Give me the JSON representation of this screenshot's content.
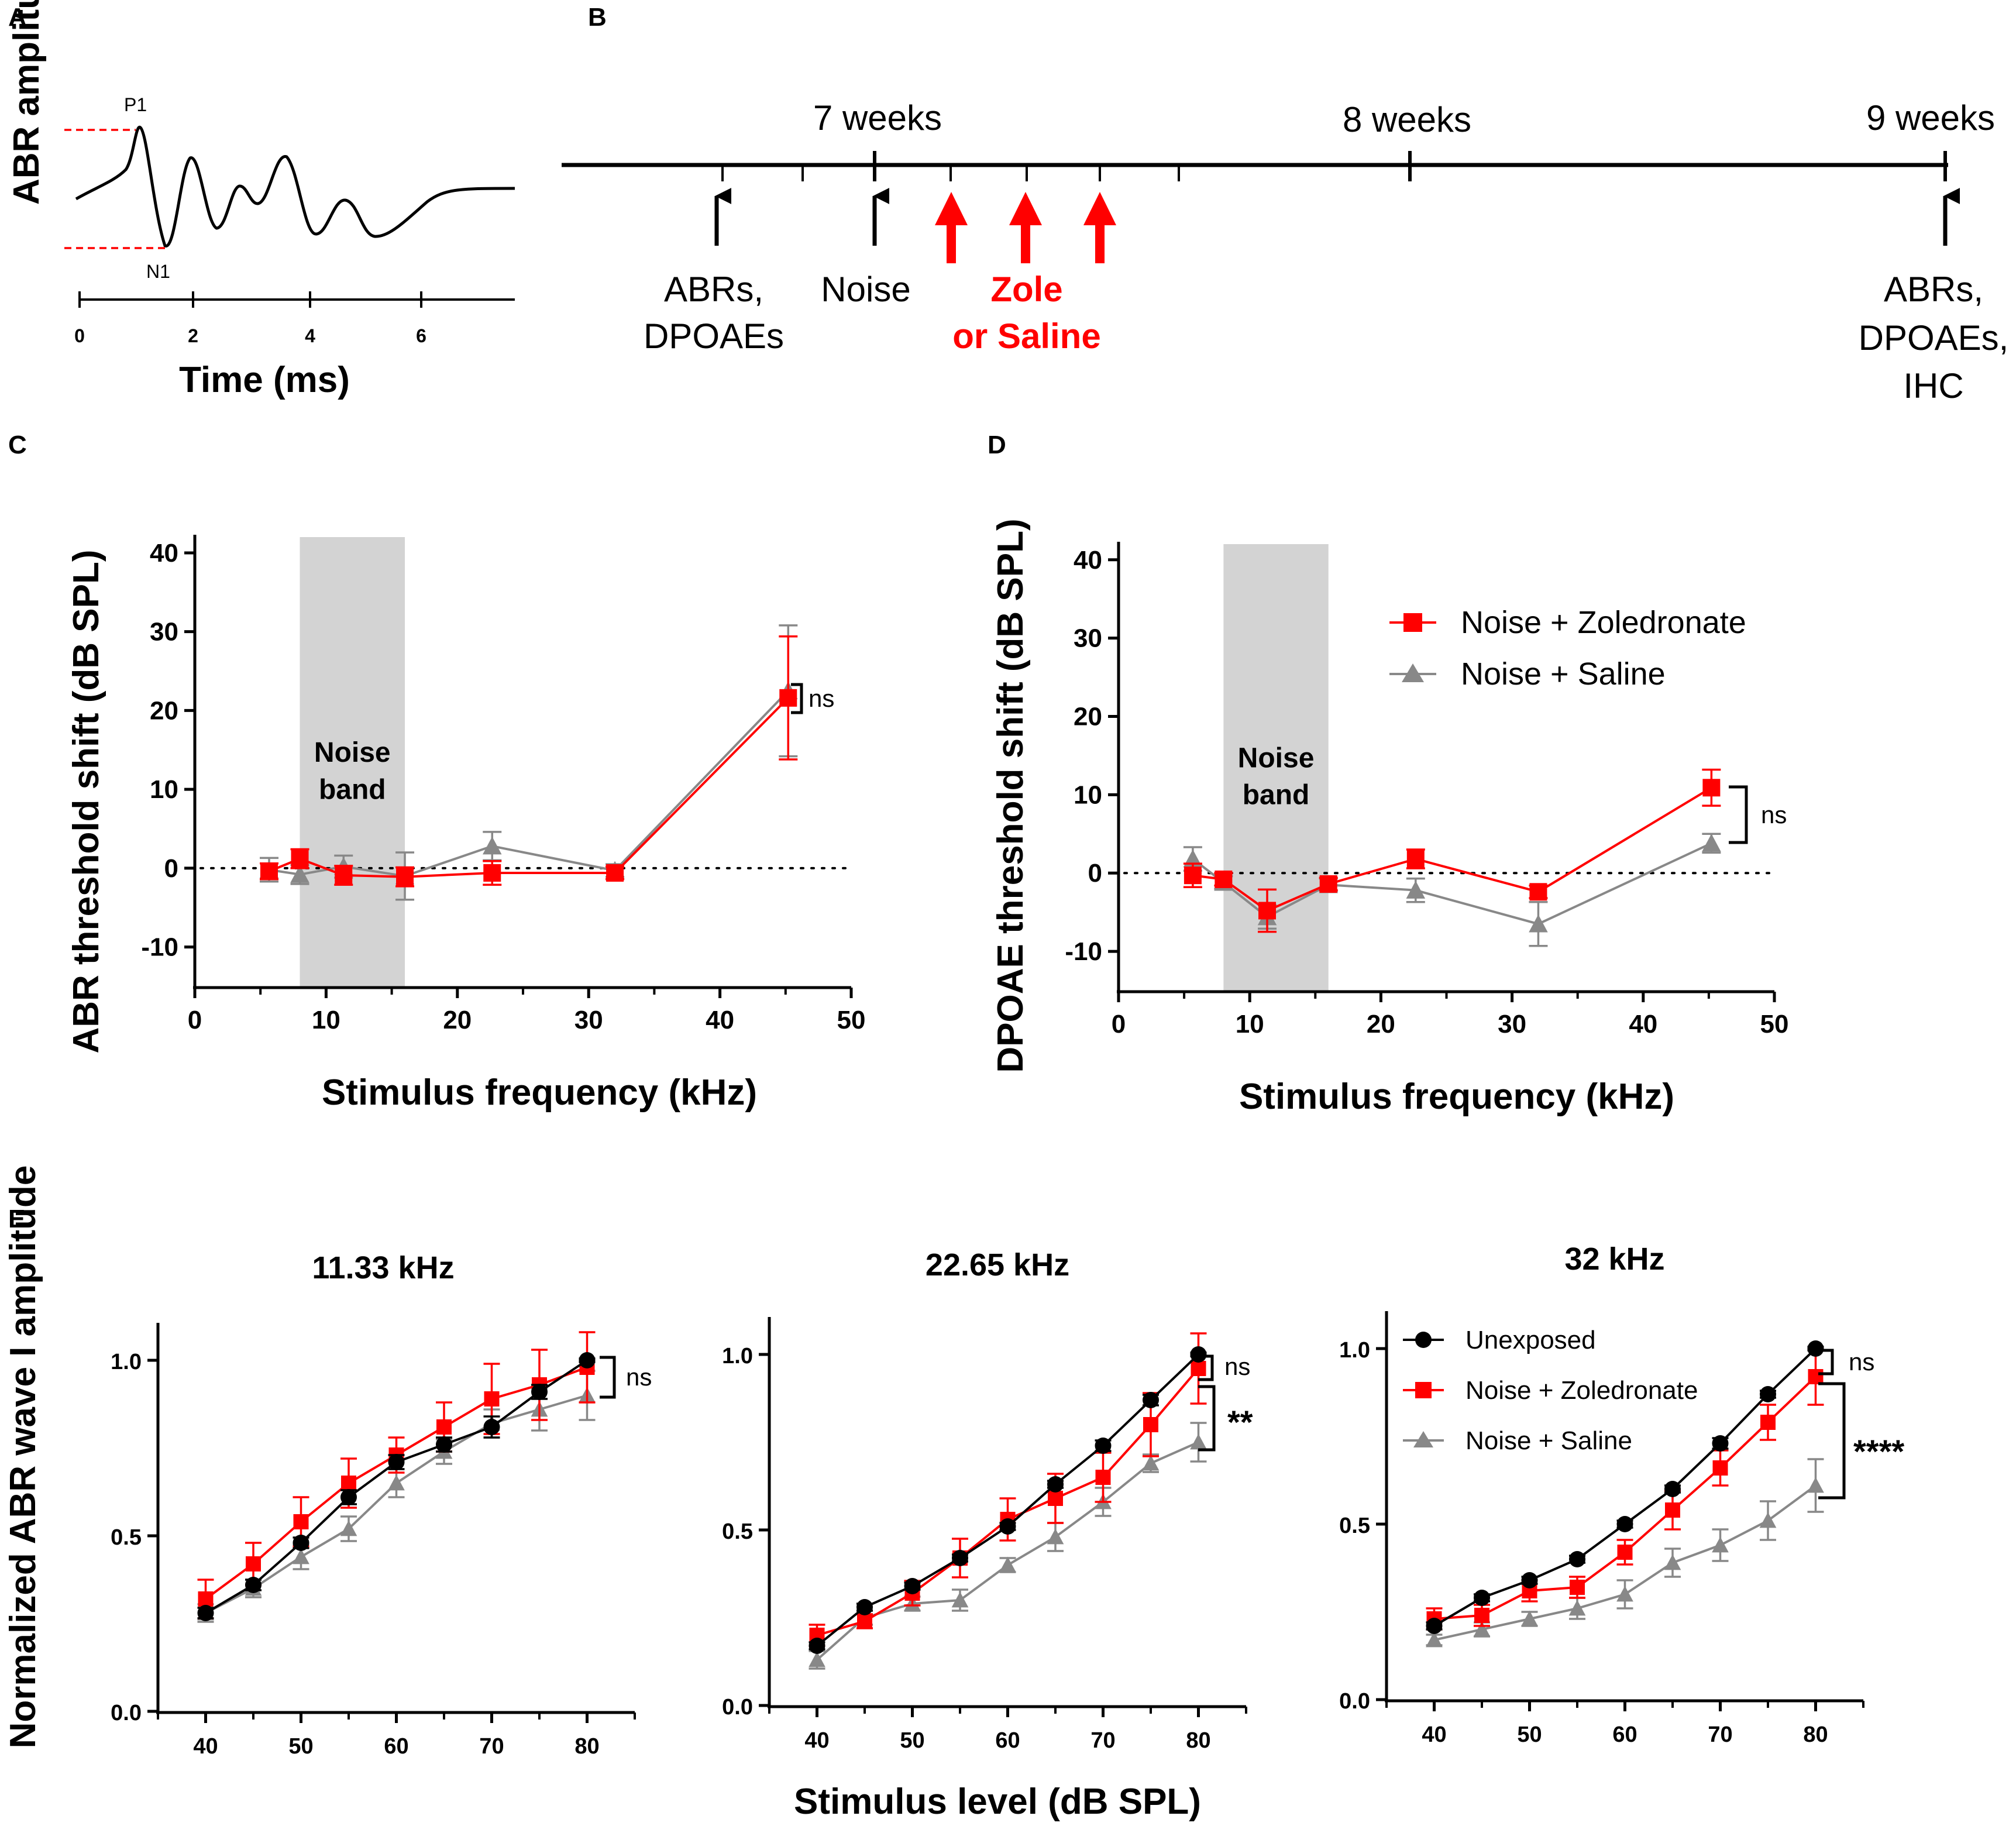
{
  "colors": {
    "zoledronate": "#ff0000",
    "saline": "#888888",
    "unexposed": "#000000",
    "noise_band": "#d3d3d3",
    "guide": "#ff0000"
  },
  "panel_labels": {
    "a": "A",
    "b": "B",
    "c": "C",
    "d": "D",
    "e": "E"
  },
  "panel_a": {
    "ylabel": "ABR amplitude",
    "xlabel": "Time (ms)",
    "ticks": [
      "0",
      "2",
      "4",
      "6"
    ],
    "peak_p1": "P1",
    "peak_n1": "N1"
  },
  "panel_b": {
    "timepoints": [
      "7 weeks",
      "8 weeks",
      "9 weeks"
    ],
    "events": {
      "baseline_line1": "ABRs,",
      "baseline_line2": "DPOAEs",
      "noise": "Noise",
      "treatment_line1": "Zole",
      "treatment_line2": "or Saline",
      "final_line1": "ABRs,",
      "final_line2": "DPOAEs,",
      "final_line3": "IHC"
    }
  },
  "legend_cd": {
    "zoledronate": "Noise + Zoledronate",
    "saline": "Noise + Saline"
  },
  "legend_e": {
    "unexposed": "Unexposed",
    "zoledronate": "Noise + Zoledronate",
    "saline": "Noise + Saline"
  },
  "chart_data": [
    {
      "id": "C",
      "type": "line",
      "ylabel": "ABR threshold shift (dB SPL)",
      "xlabel": "Stimulus frequency (kHz)",
      "xlim": [
        0,
        50
      ],
      "ylim": [
        -15,
        42
      ],
      "xticks": [
        0,
        10,
        20,
        30,
        40,
        50
      ],
      "yticks": [
        -10,
        0,
        10,
        20,
        30,
        40
      ],
      "noise_band": {
        "x": [
          8,
          16
        ],
        "label_line1": "Noise",
        "label_line2": "band"
      },
      "reference_line_y": 0,
      "annotations": [
        "ns"
      ],
      "series": [
        {
          "name": "Noise + Saline",
          "x": [
            5.66,
            8,
            11.33,
            16,
            22.65,
            32,
            45.2
          ],
          "y": [
            -0.2,
            -0.8,
            0.2,
            -1,
            2.8,
            -0.3,
            22.5
          ],
          "err": [
            1.5,
            1.2,
            1.4,
            3,
            1.8,
            0.8,
            8.3
          ]
        },
        {
          "name": "Noise + Zoledronate",
          "x": [
            5.66,
            8,
            11.33,
            16,
            22.65,
            32,
            45.2
          ],
          "y": [
            -0.4,
            1.2,
            -0.9,
            -1.1,
            -0.6,
            -0.6,
            21.6
          ],
          "err": [
            1,
            1.2,
            1.2,
            1.2,
            1.5,
            0.8,
            7.8
          ]
        }
      ]
    },
    {
      "id": "D",
      "type": "line",
      "ylabel": "DPOAE threshold shift (dB SPL)",
      "xlabel": "Stimulus frequency (kHz)",
      "xlim": [
        0,
        50
      ],
      "ylim": [
        -15,
        42
      ],
      "xticks": [
        0,
        10,
        20,
        30,
        40,
        50
      ],
      "yticks": [
        -10,
        0,
        10,
        20,
        30,
        40
      ],
      "noise_band": {
        "x": [
          8,
          16
        ],
        "label_line1": "Noise",
        "label_line2": "band"
      },
      "reference_line_y": 0,
      "annotations": [
        "ns"
      ],
      "series": [
        {
          "name": "Noise + Saline",
          "x": [
            5.66,
            8,
            11.33,
            16,
            22.65,
            32,
            45.2
          ],
          "y": [
            1.8,
            -1.2,
            -5.6,
            -1.5,
            -2.2,
            -6.5,
            3.8
          ],
          "err": [
            1.5,
            0.8,
            1.5,
            0.8,
            1.5,
            2.8,
            1.2
          ]
        },
        {
          "name": "Noise + Zoledronate",
          "x": [
            5.66,
            8,
            11.33,
            16,
            22.65,
            32,
            45.2
          ],
          "y": [
            -0.3,
            -0.8,
            -4.8,
            -1.4,
            1.8,
            -2.4,
            10.9
          ],
          "err": [
            1.5,
            0.8,
            2.7,
            0.8,
            1.2,
            0.8,
            2.3
          ]
        }
      ]
    },
    {
      "id": "E1",
      "type": "line",
      "title": "11.33 kHz",
      "xlabel": "",
      "ylabel": "Normalized ABR wave I amplitude",
      "xlim": [
        35,
        85
      ],
      "ylim": [
        0,
        1.1
      ],
      "xticks": [
        40,
        50,
        60,
        70,
        80
      ],
      "yticks": [
        0,
        0.5,
        1
      ],
      "annotations": [
        "ns"
      ],
      "series": [
        {
          "name": "Noise + Saline",
          "x": [
            40,
            45,
            50,
            55,
            60,
            65,
            70,
            75,
            80
          ],
          "y": [
            0.28,
            0.35,
            0.44,
            0.52,
            0.65,
            0.74,
            0.82,
            0.86,
            0.9
          ],
          "err": [
            0.025,
            0.025,
            0.035,
            0.035,
            0.04,
            0.035,
            0.04,
            0.06,
            0.07
          ]
        },
        {
          "name": "Noise + Zoledronate",
          "x": [
            40,
            45,
            50,
            55,
            60,
            65,
            70,
            75,
            80
          ],
          "y": [
            0.32,
            0.42,
            0.54,
            0.65,
            0.73,
            0.81,
            0.89,
            0.93,
            0.98
          ],
          "err": [
            0.055,
            0.06,
            0.07,
            0.07,
            0.05,
            0.07,
            0.1,
            0.1,
            0.1
          ]
        },
        {
          "name": "Unexposed",
          "x": [
            40,
            45,
            50,
            55,
            60,
            65,
            70,
            75,
            80
          ],
          "y": [
            0.28,
            0.36,
            0.48,
            0.61,
            0.71,
            0.76,
            0.81,
            0.91,
            1.0
          ],
          "err": [
            0.015,
            0.015,
            0.015,
            0.02,
            0.02,
            0.02,
            0.03,
            0.02,
            0.005
          ]
        }
      ]
    },
    {
      "id": "E2",
      "type": "line",
      "title": "22.65 kHz",
      "xlabel": "Stimulus level (dB SPL)",
      "ylabel": "",
      "xlim": [
        35,
        85
      ],
      "ylim": [
        0,
        1.1
      ],
      "xticks": [
        40,
        50,
        60,
        70,
        80
      ],
      "yticks": [
        0,
        0.5,
        1
      ],
      "annotations": [
        "ns",
        "**"
      ],
      "series": [
        {
          "name": "Noise + Saline",
          "x": [
            40,
            45,
            50,
            55,
            60,
            65,
            70,
            75,
            80
          ],
          "y": [
            0.13,
            0.25,
            0.29,
            0.3,
            0.4,
            0.48,
            0.58,
            0.69,
            0.75
          ],
          "err": [
            0.025,
            0.02,
            0.02,
            0.03,
            0.02,
            0.04,
            0.04,
            0.025,
            0.055
          ]
        },
        {
          "name": "Noise + Zoledronate",
          "x": [
            40,
            45,
            50,
            55,
            60,
            65,
            70,
            75,
            80
          ],
          "y": [
            0.2,
            0.24,
            0.32,
            0.42,
            0.53,
            0.59,
            0.65,
            0.8,
            0.96
          ],
          "err": [
            0.03,
            0.02,
            0.035,
            0.055,
            0.06,
            0.07,
            0.07,
            0.09,
            0.1
          ]
        },
        {
          "name": "Unexposed",
          "x": [
            40,
            45,
            50,
            55,
            60,
            65,
            70,
            75,
            80
          ],
          "y": [
            0.17,
            0.28,
            0.34,
            0.42,
            0.51,
            0.63,
            0.74,
            0.87,
            1.0
          ],
          "err": [
            0.01,
            0.01,
            0.01,
            0.01,
            0.01,
            0.01,
            0.015,
            0.015,
            0.005
          ]
        }
      ]
    },
    {
      "id": "E3",
      "type": "line",
      "title": "32 kHz",
      "xlabel": "",
      "ylabel": "",
      "xlim": [
        35,
        85
      ],
      "ylim": [
        0,
        1.1
      ],
      "xticks": [
        40,
        50,
        60,
        70,
        80
      ],
      "yticks": [
        0,
        0.5,
        1
      ],
      "annotations": [
        "ns",
        "****"
      ],
      "series": [
        {
          "name": "Noise + Saline",
          "x": [
            40,
            45,
            50,
            55,
            60,
            65,
            70,
            75,
            80
          ],
          "y": [
            0.17,
            0.2,
            0.23,
            0.26,
            0.3,
            0.39,
            0.44,
            0.51,
            0.61
          ],
          "err": [
            0.015,
            0.02,
            0.02,
            0.03,
            0.04,
            0.04,
            0.045,
            0.055,
            0.075
          ]
        },
        {
          "name": "Noise + Zoledronate",
          "x": [
            40,
            45,
            50,
            55,
            60,
            65,
            70,
            75,
            80
          ],
          "y": [
            0.23,
            0.24,
            0.31,
            0.32,
            0.42,
            0.54,
            0.66,
            0.79,
            0.92
          ],
          "err": [
            0.03,
            0.03,
            0.03,
            0.03,
            0.035,
            0.055,
            0.05,
            0.05,
            0.08
          ]
        },
        {
          "name": "Unexposed",
          "x": [
            40,
            45,
            50,
            55,
            60,
            65,
            70,
            75,
            80
          ],
          "y": [
            0.21,
            0.29,
            0.34,
            0.4,
            0.5,
            0.6,
            0.73,
            0.87,
            1.0
          ],
          "err": [
            0.01,
            0.01,
            0.01,
            0.01,
            0.01,
            0.01,
            0.015,
            0.01,
            0.005
          ]
        }
      ]
    }
  ]
}
